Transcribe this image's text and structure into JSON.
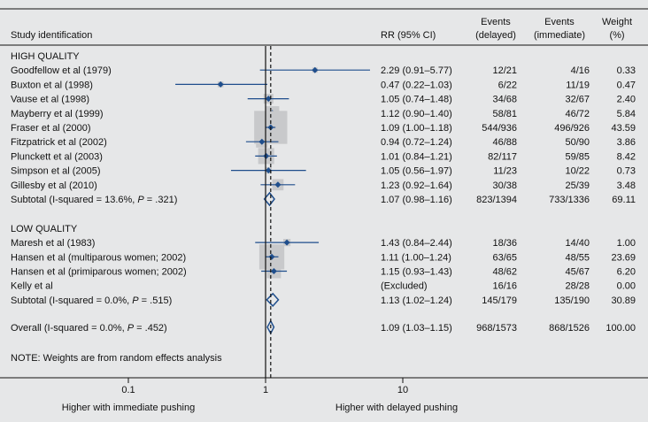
{
  "chart_data": {
    "type": "forest",
    "x_axis": {
      "scale": "log",
      "range": [
        0.1,
        10
      ],
      "ticks": [
        "0.1",
        "1",
        "10"
      ],
      "null_value": 1,
      "overall_value": 1.09
    },
    "headers": {
      "study": "Study identification",
      "rr": "RR (95% CI)",
      "events_delayed": [
        "Events",
        "(delayed)"
      ],
      "events_immediate": [
        "Events",
        "(immediate)"
      ],
      "weight": [
        "Weight",
        "(%)"
      ]
    },
    "groups": [
      {
        "label": "HIGH QUALITY",
        "studies": [
          {
            "name": "Goodfellow et al (1979)",
            "rr": 2.29,
            "lo": 0.91,
            "hi": 5.77,
            "rr_text": "2.29 (0.91–5.77)",
            "delayed": "12/21",
            "immediate": "4/16",
            "weight": 0.33,
            "weight_text": "0.33"
          },
          {
            "name": "Buxton et al (1998)",
            "rr": 0.47,
            "lo": 0.22,
            "hi": 1.03,
            "rr_text": "0.47 (0.22–1.03)",
            "delayed": "6/22",
            "immediate": "11/19",
            "weight": 0.47,
            "weight_text": "0.47"
          },
          {
            "name": "Vause et al (1998)",
            "rr": 1.05,
            "lo": 0.74,
            "hi": 1.48,
            "rr_text": "1.05 (0.74–1.48)",
            "delayed": "34/68",
            "immediate": "32/67",
            "weight": 2.4,
            "weight_text": "2.40"
          },
          {
            "name": "Mayberry et al (1999)",
            "rr": 1.12,
            "lo": 0.9,
            "hi": 1.4,
            "rr_text": "1.12 (0.90–1.40)",
            "delayed": "58/81",
            "immediate": "46/72",
            "weight": 5.84,
            "weight_text": "5.84"
          },
          {
            "name": "Fraser et al (2000)",
            "rr": 1.09,
            "lo": 1.0,
            "hi": 1.18,
            "rr_text": "1.09 (1.00–1.18)",
            "delayed": "544/936",
            "immediate": "496/926",
            "weight": 43.59,
            "weight_text": "43.59"
          },
          {
            "name": "Fitzpatrick et al (2002)",
            "rr": 0.94,
            "lo": 0.72,
            "hi": 1.24,
            "rr_text": "0.94 (0.72–1.24)",
            "delayed": "46/88",
            "immediate": "50/90",
            "weight": 3.86,
            "weight_text": "3.86"
          },
          {
            "name": "Plunckett et al (2003)",
            "rr": 1.01,
            "lo": 0.84,
            "hi": 1.21,
            "rr_text": "1.01 (0.84–1.21)",
            "delayed": "82/117",
            "immediate": "59/85",
            "weight": 8.42,
            "weight_text": "8.42"
          },
          {
            "name": "Simpson et al (2005)",
            "rr": 1.05,
            "lo": 0.56,
            "hi": 1.97,
            "rr_text": "1.05 (0.56–1.97)",
            "delayed": "11/23",
            "immediate": "10/22",
            "weight": 0.73,
            "weight_text": "0.73"
          },
          {
            "name": "Gillesby et al (2010)",
            "rr": 1.23,
            "lo": 0.92,
            "hi": 1.64,
            "rr_text": "1.23 (0.92–1.64)",
            "delayed": "30/38",
            "immediate": "25/39",
            "weight": 3.48,
            "weight_text": "3.48"
          }
        ],
        "subtotal": {
          "label_pre": "Subtotal (I-squared = 13.6%, ",
          "p_italic": "P",
          "label_post": " = .321)",
          "rr": 1.07,
          "lo": 0.98,
          "hi": 1.16,
          "rr_text": "1.07 (0.98–1.16)",
          "delayed": "823/1394",
          "immediate": "733/1336",
          "weight_text": "69.11"
        }
      },
      {
        "label": "LOW QUALITY",
        "studies": [
          {
            "name": "Maresh et al (1983)",
            "rr": 1.43,
            "lo": 0.84,
            "hi": 2.44,
            "rr_text": "1.43 (0.84–2.44)",
            "delayed": "18/36",
            "immediate": "14/40",
            "weight": 1.0,
            "weight_text": "1.00"
          },
          {
            "name": "Hansen et al (multiparous women; 2002)",
            "rr": 1.11,
            "lo": 1.0,
            "hi": 1.24,
            "rr_text": "1.11 (1.00–1.24)",
            "delayed": "63/65",
            "immediate": "48/55",
            "weight": 23.69,
            "weight_text": "23.69"
          },
          {
            "name": "Hansen et al (primiparous women; 2002)",
            "rr": 1.15,
            "lo": 0.93,
            "hi": 1.43,
            "rr_text": "1.15 (0.93–1.43)",
            "delayed": "48/62",
            "immediate": "45/67",
            "weight": 6.2,
            "weight_text": "6.20"
          },
          {
            "name": "Kelly et al",
            "rr": null,
            "lo": null,
            "hi": null,
            "rr_text": "(Excluded)",
            "delayed": "16/16",
            "immediate": "28/28",
            "weight": 0.0,
            "weight_text": "0.00"
          }
        ],
        "subtotal": {
          "label_pre": "Subtotal (I-squared = 0.0%, ",
          "p_italic": "P",
          "label_post": " = .515)",
          "rr": 1.13,
          "lo": 1.02,
          "hi": 1.24,
          "rr_text": "1.13 (1.02–1.24)",
          "delayed": "145/179",
          "immediate": "135/190",
          "weight_text": "30.89"
        }
      }
    ],
    "overall": {
      "label_pre": "Overall (I-squared = 0.0%, ",
      "p_italic": "P",
      "label_post": " = .452)",
      "rr": 1.09,
      "lo": 1.03,
      "hi": 1.15,
      "rr_text": "1.09 (1.03–1.15)",
      "delayed": "968/1573",
      "immediate": "868/1526",
      "weight_text": "100.00"
    },
    "note": "NOTE: Weights are from random effects analysis",
    "favours_left": "Higher with immediate pushing",
    "favours_right": "Higher with delayed pushing",
    "colors": {
      "background": "#e6e7e8",
      "marker": "#1f4e8c",
      "box": "#c8c9cb",
      "line": "#111111"
    }
  }
}
